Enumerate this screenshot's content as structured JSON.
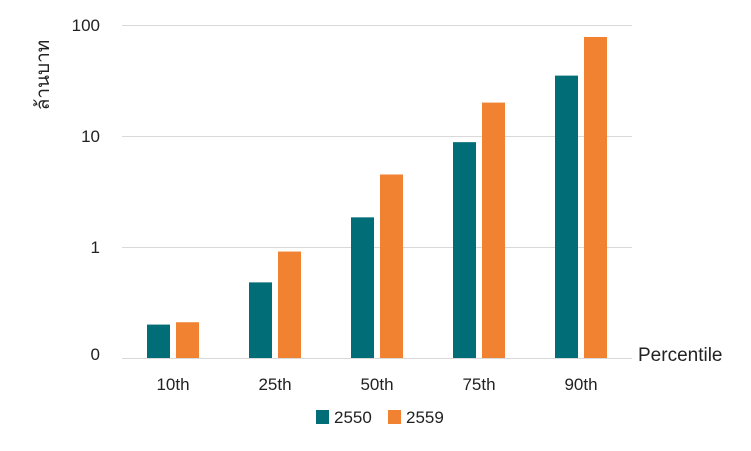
{
  "chart_data": {
    "type": "bar",
    "ylabel": "ล้านบาท",
    "xlabel": "Percentile",
    "categories": [
      "10th",
      "25th",
      "50th",
      "75th",
      "90th"
    ],
    "series": [
      {
        "name": "2550",
        "color": "#006d77",
        "values": [
          0.2,
          0.48,
          1.85,
          8.8,
          35
        ]
      },
      {
        "name": "2559",
        "color": "#f08232",
        "values": [
          0.21,
          0.91,
          4.5,
          20,
          78
        ]
      }
    ],
    "yticks": [
      "0",
      "1",
      "10",
      "100"
    ],
    "y_scale": "log",
    "grid": true,
    "legend": "bottom"
  }
}
